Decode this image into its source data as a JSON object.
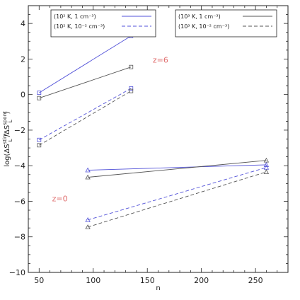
{
  "chart_data": {
    "type": "line",
    "xlabel": "n",
    "ylabel_parts": [
      "log(ΔS",
      "stim",
      "L",
      "/ΔS",
      "spont",
      "L",
      ")"
    ],
    "xlim": [
      40,
      280
    ],
    "ylim": [
      -10,
      5
    ],
    "xticks": [
      50,
      100,
      150,
      200,
      250
    ],
    "yticks": [
      -10,
      -8,
      -6,
      -4,
      -2,
      0,
      2,
      4
    ],
    "colors": {
      "blue": "#5050d8",
      "gray": "#555555",
      "annot": "#e07070"
    },
    "series": [
      {
        "name": "(10² K, 1 cm⁻³)",
        "color": "blue",
        "dash": false,
        "marker": "square",
        "x": [
          50,
          135
        ],
        "y": [
          0.1,
          3.3
        ]
      },
      {
        "name": "(10² K, 10⁻² cm⁻³)",
        "color": "blue",
        "dash": true,
        "marker": "square",
        "x": [
          50,
          135
        ],
        "y": [
          -2.55,
          0.35
        ]
      },
      {
        "name": "(10³ K, 1 cm⁻³)",
        "color": "gray",
        "dash": false,
        "marker": "square",
        "x": [
          50,
          135
        ],
        "y": [
          -0.2,
          1.55
        ]
      },
      {
        "name": "(10³ K, 10⁻² cm⁻³)",
        "color": "gray",
        "dash": true,
        "marker": "square",
        "x": [
          50,
          135
        ],
        "y": [
          -2.85,
          0.2
        ]
      },
      {
        "name": "(10² K, 1 cm⁻³)",
        "color": "blue",
        "dash": false,
        "marker": "triangle",
        "x": [
          95,
          260
        ],
        "y": [
          -4.25,
          -3.95
        ]
      },
      {
        "name": "(10² K, 10⁻² cm⁻³)",
        "color": "blue",
        "dash": true,
        "marker": "triangle",
        "x": [
          95,
          260
        ],
        "y": [
          -7.05,
          -4.1
        ]
      },
      {
        "name": "(10³ K, 1 cm⁻³)",
        "color": "gray",
        "dash": false,
        "marker": "triangle",
        "x": [
          95,
          260
        ],
        "y": [
          -4.65,
          -3.7
        ]
      },
      {
        "name": "(10³ K, 10⁻² cm⁻³)",
        "color": "gray",
        "dash": true,
        "marker": "triangle",
        "x": [
          95,
          260
        ],
        "y": [
          -7.45,
          -4.35
        ]
      }
    ],
    "legends": [
      {
        "placement": "top-left",
        "entries": [
          {
            "label": "(10² K, 1 cm⁻³)",
            "color": "blue",
            "dash": false
          },
          {
            "label": "(10² K, 10⁻² cm⁻³)",
            "color": "blue",
            "dash": true
          }
        ]
      },
      {
        "placement": "top-right",
        "entries": [
          {
            "label": "(10³ K, 1 cm⁻³)",
            "color": "gray",
            "dash": false
          },
          {
            "label": "(10³ K, 10⁻² cm⁻³)",
            "color": "gray",
            "dash": true
          }
        ]
      }
    ],
    "annotations": [
      {
        "text": "z=6",
        "x": 155,
        "y": 1.8
      },
      {
        "text": "z=0",
        "x": 62,
        "y": -6.0
      }
    ]
  }
}
